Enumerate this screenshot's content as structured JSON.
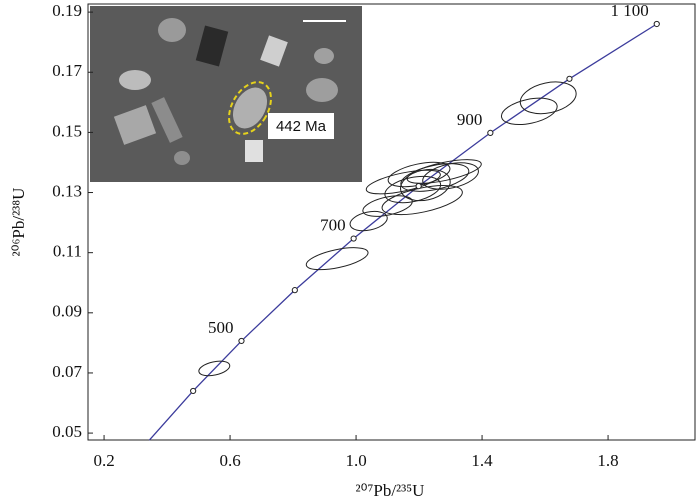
{
  "chart_data": {
    "type": "concordia",
    "x_label": "²⁰⁷Pb/²³⁵U",
    "y_label": "²⁰⁶Pb/²³⁸U",
    "xlim": [
      0.149,
      2.076
    ],
    "ylim": [
      0.0477,
      0.1927
    ],
    "xticks": [
      0.2,
      0.6,
      {
        "value": 1,
        "label": "1.0"
      },
      1.4,
      1.8
    ],
    "yticks": [
      0.05,
      0.07,
      0.09,
      0.11,
      0.13,
      0.15,
      0.17,
      0.19
    ],
    "curve_color": "#3c3c9c",
    "x": [
      0.3437,
      0.4828,
      0.6362,
      0.8056,
      0.9923,
      1.1987,
      1.4263,
      1.6774,
      1.9546
    ],
    "values": [
      0.04764,
      0.06402,
      0.08065,
      0.09754,
      0.1147,
      0.13214,
      0.14983,
      0.16782,
      0.18606
    ],
    "age_labels": [
      null,
      null,
      "500",
      null,
      "700",
      null,
      "900",
      null,
      "1 100"
    ],
    "ellipses": [
      {
        "x": 0.55,
        "y": 0.0715,
        "x_err": 0.05,
        "y_err": 0.0022
      },
      {
        "x": 0.94,
        "y": 0.108,
        "x_err": 0.1,
        "y_err": 0.003
      },
      {
        "x": 1.04,
        "y": 0.1205,
        "x_err": 0.06,
        "y_err": 0.003
      },
      {
        "x": 1.1,
        "y": 0.1255,
        "x_err": 0.08,
        "y_err": 0.003
      },
      {
        "x": 1.18,
        "y": 0.131,
        "x_err": 0.09,
        "y_err": 0.004
      },
      {
        "x": 1.15,
        "y": 0.1335,
        "x_err": 0.12,
        "y_err": 0.003
      },
      {
        "x": 1.2,
        "y": 0.136,
        "x_err": 0.1,
        "y_err": 0.0035
      },
      {
        "x": 1.25,
        "y": 0.135,
        "x_err": 0.11,
        "y_err": 0.004
      },
      {
        "x": 1.22,
        "y": 0.1325,
        "x_err": 0.08,
        "y_err": 0.005
      },
      {
        "x": 1.28,
        "y": 0.137,
        "x_err": 0.12,
        "y_err": 0.003
      },
      {
        "x": 1.3,
        "y": 0.1355,
        "x_err": 0.09,
        "y_err": 0.004
      },
      {
        "x": 1.21,
        "y": 0.1275,
        "x_err": 0.13,
        "y_err": 0.004
      },
      {
        "x": 1.55,
        "y": 0.157,
        "x_err": 0.09,
        "y_err": 0.004
      },
      {
        "x": 1.61,
        "y": 0.1615,
        "x_err": 0.09,
        "y_err": 0.005
      }
    ],
    "inset_label": "442 Ma"
  }
}
